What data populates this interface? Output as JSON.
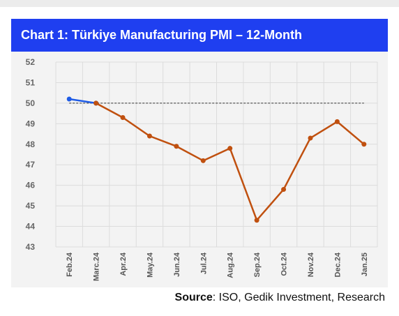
{
  "title": "Chart 1: Türkiye Manufacturing PMI – 12-Month",
  "source": {
    "label": "Source",
    "text": ": ISO, Gedik Investment, Research"
  },
  "colors": {
    "banner": "#1f3ff0",
    "series_blue": "#1f5ce6",
    "series_orange": "#c0500f",
    "reference_line": "#333333",
    "panel_background": "#f3f3f3",
    "grid": "#dcdcdc"
  },
  "chart_data": {
    "type": "line",
    "title": "Chart 1: Türkiye Manufacturing PMI – 12-Month",
    "categories": [
      "Feb.24",
      "Marc.24",
      "Apr.24",
      "May.24",
      "Jun.24",
      "Jul.24",
      "Aug.24",
      "Sep.24",
      "Oct.24",
      "Nov.24",
      "Dec.24",
      "Jan.25"
    ],
    "series": [
      {
        "color": "#1f5ce6",
        "values": [
          50.2,
          50.0,
          null,
          null,
          null,
          null,
          null,
          null,
          null,
          null,
          null,
          null
        ]
      },
      {
        "color": "#c0500f",
        "values": [
          null,
          50.0,
          49.3,
          48.4,
          47.9,
          47.2,
          47.8,
          44.3,
          45.8,
          48.3,
          49.1,
          48.0
        ]
      }
    ],
    "reference_line": 50,
    "ylim": [
      43,
      52
    ],
    "yticks": [
      43,
      44,
      45,
      46,
      47,
      48,
      49,
      50,
      51,
      52
    ],
    "grid": true,
    "legend": "none",
    "xlabel": "",
    "ylabel": ""
  }
}
